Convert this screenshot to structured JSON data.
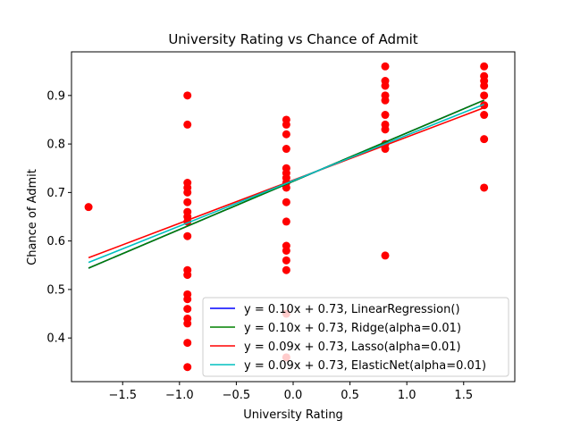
{
  "chart_data": {
    "type": "scatter",
    "title": "University Rating vs Chance of Admit",
    "xlabel": "University Rating",
    "ylabel": "Chance of Admit",
    "xlim": [
      -1.95,
      1.95
    ],
    "ylim": [
      0.31,
      0.99
    ],
    "xticks": [
      -1.5,
      -1.0,
      -0.5,
      0.0,
      0.5,
      1.0,
      1.5
    ],
    "xtick_labels": [
      "−1.5",
      "−1.0",
      "−0.5",
      "0.0",
      "0.5",
      "1.0",
      "1.5"
    ],
    "yticks": [
      0.4,
      0.5,
      0.6,
      0.7,
      0.8,
      0.9
    ],
    "ytick_labels": [
      "0.4",
      "0.5",
      "0.6",
      "0.7",
      "0.8",
      "0.9"
    ],
    "grid": false,
    "legend_position": "lower-right",
    "scatter": {
      "color": "#ff0000",
      "points": [
        {
          "x": -1.8,
          "y": 0.67
        },
        {
          "x": -0.93,
          "y": 0.9
        },
        {
          "x": -0.93,
          "y": 0.84
        },
        {
          "x": -0.93,
          "y": 0.72
        },
        {
          "x": -0.93,
          "y": 0.71
        },
        {
          "x": -0.93,
          "y": 0.7
        },
        {
          "x": -0.93,
          "y": 0.68
        },
        {
          "x": -0.93,
          "y": 0.66
        },
        {
          "x": -0.93,
          "y": 0.65
        },
        {
          "x": -0.93,
          "y": 0.64
        },
        {
          "x": -0.93,
          "y": 0.61
        },
        {
          "x": -0.93,
          "y": 0.54
        },
        {
          "x": -0.93,
          "y": 0.53
        },
        {
          "x": -0.93,
          "y": 0.49
        },
        {
          "x": -0.93,
          "y": 0.48
        },
        {
          "x": -0.93,
          "y": 0.46
        },
        {
          "x": -0.93,
          "y": 0.44
        },
        {
          "x": -0.93,
          "y": 0.43
        },
        {
          "x": -0.93,
          "y": 0.39
        },
        {
          "x": -0.93,
          "y": 0.34
        },
        {
          "x": -0.06,
          "y": 0.85
        },
        {
          "x": -0.06,
          "y": 0.84
        },
        {
          "x": -0.06,
          "y": 0.82
        },
        {
          "x": -0.06,
          "y": 0.79
        },
        {
          "x": -0.06,
          "y": 0.75
        },
        {
          "x": -0.06,
          "y": 0.74
        },
        {
          "x": -0.06,
          "y": 0.73
        },
        {
          "x": -0.06,
          "y": 0.72
        },
        {
          "x": -0.06,
          "y": 0.71
        },
        {
          "x": -0.06,
          "y": 0.68
        },
        {
          "x": -0.06,
          "y": 0.64
        },
        {
          "x": -0.06,
          "y": 0.59
        },
        {
          "x": -0.06,
          "y": 0.58
        },
        {
          "x": -0.06,
          "y": 0.56
        },
        {
          "x": -0.06,
          "y": 0.54
        },
        {
          "x": -0.06,
          "y": 0.45
        },
        {
          "x": -0.06,
          "y": 0.36
        },
        {
          "x": 0.81,
          "y": 0.96
        },
        {
          "x": 0.81,
          "y": 0.93
        },
        {
          "x": 0.81,
          "y": 0.92
        },
        {
          "x": 0.81,
          "y": 0.9
        },
        {
          "x": 0.81,
          "y": 0.89
        },
        {
          "x": 0.81,
          "y": 0.86
        },
        {
          "x": 0.81,
          "y": 0.84
        },
        {
          "x": 0.81,
          "y": 0.83
        },
        {
          "x": 0.81,
          "y": 0.8
        },
        {
          "x": 0.81,
          "y": 0.79
        },
        {
          "x": 0.81,
          "y": 0.57
        },
        {
          "x": 1.68,
          "y": 0.96
        },
        {
          "x": 1.68,
          "y": 0.94
        },
        {
          "x": 1.68,
          "y": 0.93
        },
        {
          "x": 1.68,
          "y": 0.92
        },
        {
          "x": 1.68,
          "y": 0.9
        },
        {
          "x": 1.68,
          "y": 0.88
        },
        {
          "x": 1.68,
          "y": 0.86
        },
        {
          "x": 1.68,
          "y": 0.81
        },
        {
          "x": 1.68,
          "y": 0.71
        }
      ]
    },
    "series": [
      {
        "name": "y = 0.10x + 0.73, LinearRegression()",
        "color": "#0000ff",
        "slope": 0.0995,
        "intercept": 0.7232
      },
      {
        "name": "y = 0.10x + 0.73, Ridge(alpha=0.01)",
        "color": "#008000",
        "slope": 0.0995,
        "intercept": 0.7232
      },
      {
        "name": "y = 0.09x + 0.73, Lasso(alpha=0.01)",
        "color": "#ff0000",
        "slope": 0.0889,
        "intercept": 0.7254
      },
      {
        "name": "y = 0.09x + 0.73, ElasticNet(alpha=0.01)",
        "color": "#00bfbf",
        "slope": 0.0937,
        "intercept": 0.7244
      }
    ],
    "line_x_range": [
      -1.8,
      1.68
    ]
  }
}
